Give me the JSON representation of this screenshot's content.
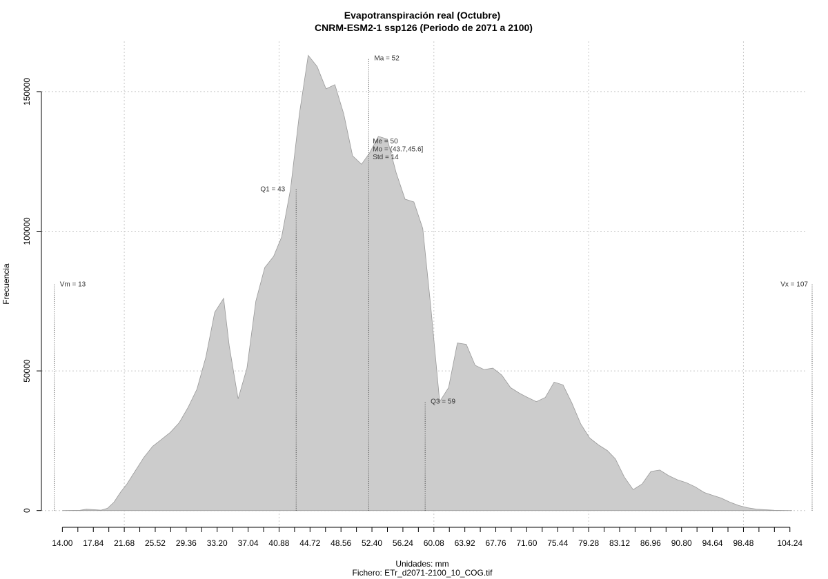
{
  "chart_data": {
    "type": "area",
    "title": "Evapotranspiración real (Octubre)",
    "subtitle": "CNRM-ESM2-1 ssp126 (Periodo de 2071 a 2100)",
    "xlabel": "Unidades: mm",
    "footer": "Fichero: ETr_d2071-2100_10_COG.tif",
    "ylabel": "Frecuencia",
    "fill_color": "#cccccc",
    "line_color": "#999999",
    "grid": true,
    "xlim": [
      11.4,
      106.4
    ],
    "ylim": [
      -6000,
      168000
    ],
    "xticks": [
      14.0,
      17.84,
      21.68,
      25.52,
      29.36,
      33.2,
      37.04,
      40.88,
      44.72,
      48.56,
      52.4,
      56.24,
      60.08,
      63.92,
      67.76,
      71.6,
      75.44,
      79.28,
      83.12,
      86.96,
      90.8,
      94.64,
      98.48,
      104.24
    ],
    "xtick_labels": [
      "14.00",
      "17.84",
      "21.68",
      "25.52",
      "29.36",
      "33.20",
      "37.04",
      "40.88",
      "44.72",
      "48.56",
      "52.40",
      "56.24",
      "60.08",
      "63.92",
      "67.76",
      "71.60",
      "75.44",
      "79.28",
      "83.12",
      "86.96",
      "90.80",
      "94.64",
      "98.48",
      "104.24"
    ],
    "yticks": [
      0,
      50000,
      100000,
      150000
    ],
    "ytick_labels": [
      "0",
      "50000",
      "100000",
      "150000"
    ],
    "x": [
      14.0,
      16.2,
      17.0,
      18.8,
      19.6,
      20.4,
      21.2,
      22.0,
      23.0,
      24.1,
      25.2,
      26.3,
      27.4,
      28.5,
      29.6,
      30.7,
      31.8,
      32.9,
      34.0,
      34.7,
      35.8,
      36.9,
      38.0,
      39.1,
      40.2,
      41.2,
      42.3,
      43.4,
      44.5,
      45.6,
      46.7,
      47.8,
      48.9,
      50.0,
      51.1,
      52.1,
      53.2,
      54.3,
      55.4,
      56.5,
      57.6,
      58.7,
      59.7,
      60.8,
      61.9,
      63.0,
      64.1,
      65.2,
      66.3,
      67.4,
      68.5,
      69.6,
      70.7,
      71.7,
      72.8,
      73.9,
      75.0,
      76.1,
      77.2,
      78.3,
      79.4,
      80.5,
      81.6,
      82.6,
      83.7,
      84.8,
      85.9,
      87.0,
      88.1,
      89.2,
      90.3,
      91.4,
      92.5,
      93.6,
      94.6,
      95.7,
      96.8,
      97.9,
      99.0,
      100.1,
      101.2,
      102.3,
      103.4,
      104.5
    ],
    "y": [
      0,
      100,
      500,
      150,
      800,
      3000,
      6500,
      9500,
      14000,
      19000,
      23000,
      25500,
      28000,
      31500,
      37000,
      43500,
      55000,
      71000,
      76000,
      59000,
      40000,
      51000,
      75000,
      87000,
      91000,
      98000,
      115000,
      142000,
      163000,
      159000,
      151000,
      152500,
      142000,
      127000,
      124000,
      128000,
      134000,
      133000,
      121000,
      111500,
      110500,
      101000,
      73000,
      39000,
      44000,
      60000,
      59500,
      52000,
      50500,
      51000,
      48500,
      44000,
      42000,
      40500,
      39000,
      40500,
      46000,
      45000,
      38500,
      31000,
      26000,
      23500,
      21500,
      18500,
      12000,
      7500,
      9500,
      14000,
      14500,
      12500,
      11000,
      10000,
      8500,
      6500,
      5500,
      4500,
      3000,
      1800,
      1000,
      500,
      300,
      100,
      50,
      0
    ],
    "markers": [
      {
        "label": "Vm = 13",
        "x": 13.0,
        "y": 81000
      },
      {
        "label": "Q1 = 43",
        "x": 43.0,
        "y": 115000
      },
      {
        "label": "Ma = 52",
        "x": 52.0,
        "y": 162000
      },
      {
        "label": "Q3 = 59",
        "x": 59.0,
        "y": 39000
      },
      {
        "label": "Vx = 107",
        "x": 107.0,
        "y": 81000
      }
    ],
    "stats_block": {
      "x": 52.5,
      "y": 133000,
      "lines": [
        "Me = 50",
        "Mo = (43.7,45.6]",
        "Std = 14"
      ]
    }
  }
}
